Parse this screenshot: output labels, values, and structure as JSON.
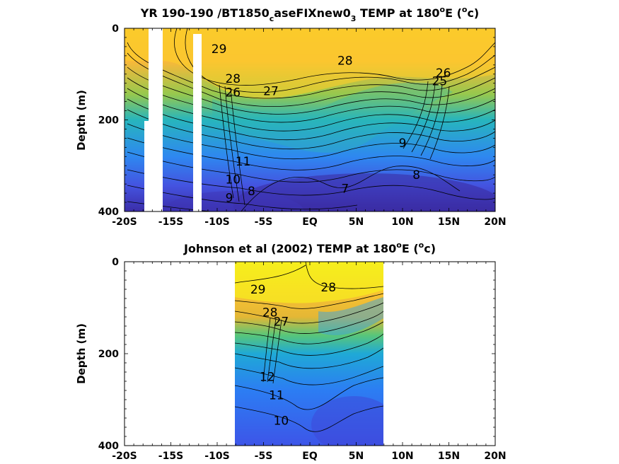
{
  "chart_data": [
    {
      "type": "heatmap",
      "title": "YR 190-190 /BT1850",
      "title_sub": "c",
      "title_mid": "aseFIXnew0",
      "title_sub2": "3",
      "title_end": " TEMP at 180",
      "title_sup": "o",
      "title_tail": "E (",
      "title_sup2": "o",
      "title_close": "c)",
      "ylabel": "Depth (m)",
      "xlabel": "",
      "xlim": [
        -20,
        20
      ],
      "ylim": [
        0,
        400
      ],
      "xticks": [
        {
          "v": -20,
          "label": "-20S"
        },
        {
          "v": -15,
          "label": "-15S"
        },
        {
          "v": -10,
          "label": "-10S"
        },
        {
          "v": -5,
          "label": "-5S"
        },
        {
          "v": 0,
          "label": "EQ"
        },
        {
          "v": 5,
          "label": "5N"
        },
        {
          "v": 10,
          "label": "10N"
        },
        {
          "v": 15,
          "label": "15N"
        },
        {
          "v": 20,
          "label": "20N"
        }
      ],
      "yticks": [
        {
          "v": 0,
          "label": "0"
        },
        {
          "v": 200,
          "label": "200"
        },
        {
          "v": 400,
          "label": "400"
        }
      ],
      "contour_labels": [
        {
          "lat": -9.8,
          "depth": 45,
          "text": "29"
        },
        {
          "lat": 3.8,
          "depth": 70,
          "text": "28"
        },
        {
          "lat": -8.3,
          "depth": 110,
          "text": "28"
        },
        {
          "lat": -4.2,
          "depth": 137,
          "text": "27"
        },
        {
          "lat": -8.3,
          "depth": 140,
          "text": "26"
        },
        {
          "lat": 14.4,
          "depth": 97,
          "text": "26"
        },
        {
          "lat": 14.0,
          "depth": 115,
          "text": "25"
        },
        {
          "lat": -7.2,
          "depth": 290,
          "text": "11"
        },
        {
          "lat": -8.3,
          "depth": 330,
          "text": "10"
        },
        {
          "lat": -6.3,
          "depth": 355,
          "text": "8"
        },
        {
          "lat": -8.7,
          "depth": 370,
          "text": "9"
        },
        {
          "lat": 3.8,
          "depth": 350,
          "text": "7"
        },
        {
          "lat": 11.5,
          "depth": 320,
          "text": "8"
        },
        {
          "lat": 10.0,
          "depth": 250,
          "text": "9"
        }
      ],
      "colormap": [
        "#3e26a8",
        "#4743e5",
        "#3d6ffb",
        "#2a95eb",
        "#1fb3cf",
        "#35c49a",
        "#7fcb61",
        "#c5c02c",
        "#f5b833",
        "#fbd028",
        "#f9fb0e"
      ],
      "temperature_range_c": [
        7,
        29
      ]
    },
    {
      "type": "heatmap",
      "title": "Johnson et al (2002) TEMP at 180",
      "title_sup": "o",
      "title_tail": "E (",
      "title_sup2": "o",
      "title_close": "c)",
      "ylabel": "Depth (m)",
      "xlabel": "",
      "xlim": [
        -20,
        20
      ],
      "ylim": [
        0,
        400
      ],
      "data_lat_range": [
        -8,
        8
      ],
      "xticks": [
        {
          "v": -20,
          "label": "-20S"
        },
        {
          "v": -15,
          "label": "-15S"
        },
        {
          "v": -10,
          "label": "-10S"
        },
        {
          "v": -5,
          "label": "-5S"
        },
        {
          "v": 0,
          "label": "EQ"
        },
        {
          "v": 5,
          "label": "5N"
        },
        {
          "v": 10,
          "label": "10N"
        },
        {
          "v": 15,
          "label": "15N"
        },
        {
          "v": 20,
          "label": "20N"
        }
      ],
      "yticks": [
        {
          "v": 0,
          "label": "0"
        },
        {
          "v": 200,
          "label": "200"
        },
        {
          "v": 400,
          "label": "400"
        }
      ],
      "contour_labels": [
        {
          "lat": -5.6,
          "depth": 60,
          "text": "29"
        },
        {
          "lat": 2.0,
          "depth": 55,
          "text": "28"
        },
        {
          "lat": -4.3,
          "depth": 110,
          "text": "28"
        },
        {
          "lat": -3.1,
          "depth": 130,
          "text": "27"
        },
        {
          "lat": -3.6,
          "depth": 290,
          "text": "11"
        },
        {
          "lat": -4.6,
          "depth": 250,
          "text": "12"
        },
        {
          "lat": -3.1,
          "depth": 345,
          "text": "10"
        }
      ],
      "colormap": [
        "#3e26a8",
        "#4743e5",
        "#3d6ffb",
        "#2a95eb",
        "#1fb3cf",
        "#35c49a",
        "#7fcb61",
        "#c5c02c",
        "#f5b833",
        "#fbd028",
        "#f9fb0e"
      ],
      "temperature_range_c": [
        9,
        29.5
      ]
    }
  ]
}
